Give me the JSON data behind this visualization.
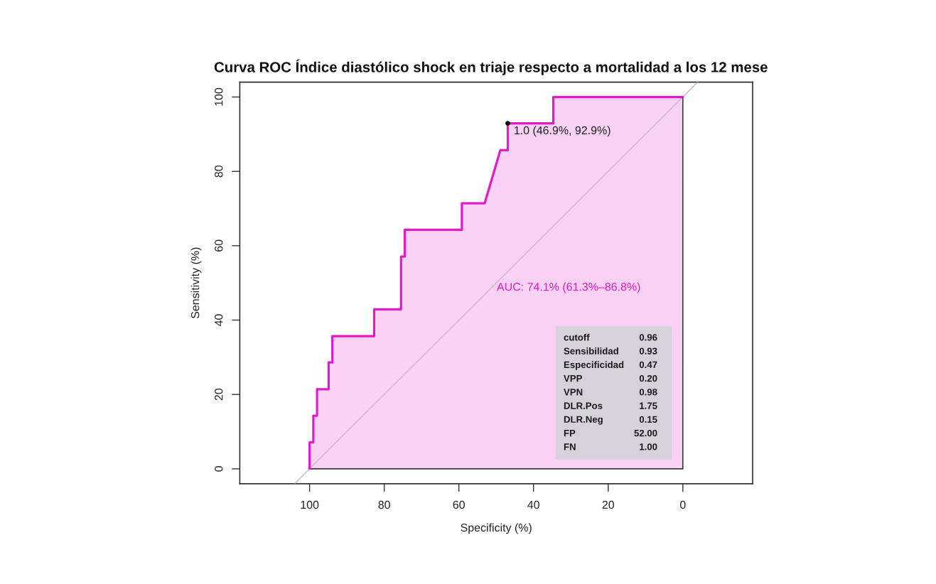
{
  "chart_data": {
    "type": "area",
    "title": "Curva ROC Índice diastólico shock en triaje respecto a mortalidad a los 12 mese",
    "xlabel": "Specificity (%)",
    "ylabel": "Sensitivity (%)",
    "series": [
      {
        "color": "#e31bc7",
        "x": [
          100,
          100,
          99.0,
          99.0,
          98.0,
          98.0,
          94.9,
          94.9,
          93.9,
          93.9,
          82.7,
          82.7,
          75.5,
          75.5,
          74.5,
          74.5,
          59.2,
          59.2,
          53.1,
          48.9,
          46.9,
          46.9,
          34.7,
          34.7,
          0
        ],
        "values": [
          0,
          7.1,
          7.1,
          14.3,
          14.3,
          21.4,
          21.4,
          28.6,
          28.6,
          35.7,
          35.7,
          42.9,
          42.9,
          57.1,
          57.1,
          64.3,
          64.3,
          71.4,
          71.4,
          85.7,
          85.7,
          92.9,
          92.9,
          100,
          100
        ]
      },
      {
        "type": "line",
        "color": "#c2bec6",
        "x": [
          104,
          -4
        ],
        "values": [
          -4,
          104
        ]
      },
      {
        "type": "scatter",
        "color": "#000000",
        "marker": "circle",
        "x": [
          46.9
        ],
        "values": [
          92.9
        ]
      }
    ],
    "xlim": [
      118.7,
      -18.7
    ],
    "ylim": [
      -4,
      104
    ],
    "xticks": [
      100,
      80,
      60,
      40,
      20,
      0
    ],
    "yticks": [
      0,
      20,
      40,
      60,
      80,
      100
    ],
    "annotations": [
      {
        "text": "1.0 (46.9%, 92.9%)",
        "x": 46.9,
        "y": 92.9
      },
      "AUC: 74.1% (61.3%–86.8%)",
      "cutoff 0.96",
      "Sensibilidad 0.93",
      "Especificidad 0.47",
      "VPP 0.20",
      "VPN 0.98",
      "DLR.Pos 1.75",
      "DLR.Neg 0.15",
      "FP 52.00",
      "FN 1.00"
    ]
  }
}
